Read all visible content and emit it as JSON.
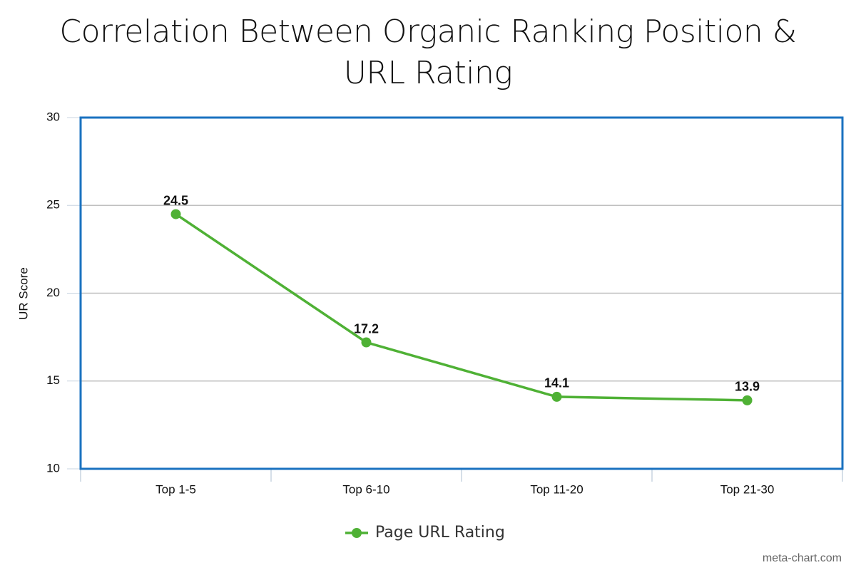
{
  "chart_data": {
    "type": "line",
    "title": "Correlation Between Organic Ranking Position & URL Rating",
    "y_label": "UR Score",
    "categories": [
      "Top 1-5",
      "Top 6-10",
      "Top 11-20",
      "Top 21-30"
    ],
    "series": [
      {
        "name": "Page URL Rating",
        "color": "#4fb135",
        "values": [
          24.5,
          17.2,
          14.1,
          13.9
        ]
      }
    ],
    "ylim": [
      10,
      30
    ],
    "yticks": [
      10,
      15,
      20,
      25,
      30
    ],
    "grid": true,
    "legend": "bottom",
    "credit": "meta-chart.com"
  }
}
